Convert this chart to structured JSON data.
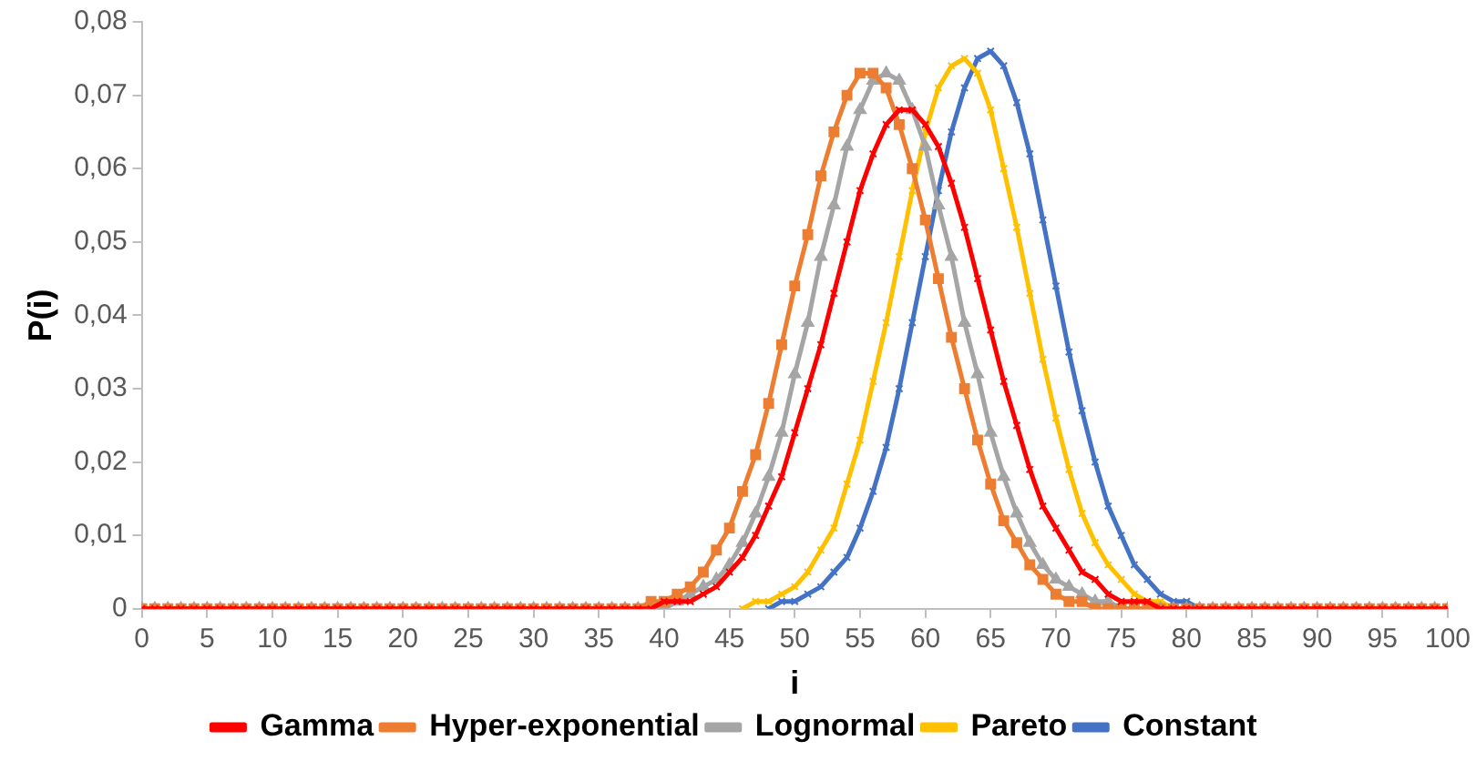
{
  "chart_data": {
    "type": "line",
    "xlabel": "i",
    "ylabel": "P(i)",
    "x": [
      0,
      1,
      2,
      3,
      4,
      5,
      6,
      7,
      8,
      9,
      10,
      11,
      12,
      13,
      14,
      15,
      16,
      17,
      18,
      19,
      20,
      21,
      22,
      23,
      24,
      25,
      26,
      27,
      28,
      29,
      30,
      31,
      32,
      33,
      34,
      35,
      36,
      37,
      38,
      39,
      40,
      41,
      42,
      43,
      44,
      45,
      46,
      47,
      48,
      49,
      50,
      51,
      52,
      53,
      54,
      55,
      56,
      57,
      58,
      59,
      60,
      61,
      62,
      63,
      64,
      65,
      66,
      67,
      68,
      69,
      70,
      71,
      72,
      73,
      74,
      75,
      76,
      77,
      78,
      79,
      80,
      81,
      82,
      83,
      84,
      85,
      86,
      87,
      88,
      89,
      90,
      91,
      92,
      93,
      94,
      95,
      96,
      97,
      98,
      99,
      100
    ],
    "series": [
      {
        "name": "Gamma",
        "color": "#ff0000",
        "marker": "cross",
        "values": [
          0,
          0,
          0,
          0,
          0,
          0,
          0,
          0,
          0,
          0,
          0,
          0,
          0,
          0,
          0,
          0,
          0,
          0,
          0,
          0,
          0,
          0,
          0,
          0,
          0,
          0,
          0,
          0,
          0,
          0,
          0,
          0,
          0,
          0,
          0,
          0,
          0,
          0,
          0,
          0,
          0.001,
          0.001,
          0.001,
          0.002,
          0.003,
          0.005,
          0.007,
          0.01,
          0.014,
          0.018,
          0.024,
          0.03,
          0.036,
          0.043,
          0.05,
          0.057,
          0.062,
          0.066,
          0.068,
          0.068,
          0.066,
          0.063,
          0.058,
          0.052,
          0.045,
          0.038,
          0.031,
          0.025,
          0.019,
          0.014,
          0.011,
          0.008,
          0.005,
          0.004,
          0.002,
          0.001,
          0.001,
          0.001,
          0,
          0,
          0,
          0,
          0,
          0,
          0,
          0,
          0,
          0,
          0,
          0,
          0,
          0,
          0,
          0,
          0,
          0,
          0,
          0,
          0,
          0,
          0
        ]
      },
      {
        "name": "Hyper-exponential",
        "color": "#ed7d31",
        "marker": "square",
        "values": [
          0,
          0,
          0,
          0,
          0,
          0,
          0,
          0,
          0,
          0,
          0,
          0,
          0,
          0,
          0,
          0,
          0,
          0,
          0,
          0,
          0,
          0,
          0,
          0,
          0,
          0,
          0,
          0,
          0,
          0,
          0,
          0,
          0,
          0,
          0,
          0,
          0,
          0,
          0,
          0.001,
          0.001,
          0.002,
          0.003,
          0.005,
          0.008,
          0.011,
          0.016,
          0.021,
          0.028,
          0.036,
          0.044,
          0.051,
          0.059,
          0.065,
          0.07,
          0.073,
          0.073,
          0.071,
          0.066,
          0.06,
          0.053,
          0.045,
          0.037,
          0.03,
          0.023,
          0.017,
          0.012,
          0.009,
          0.006,
          0.004,
          0.002,
          0.001,
          0.001,
          0,
          0,
          0,
          0,
          0,
          0,
          0,
          0,
          0,
          0,
          0,
          0,
          0,
          0,
          0,
          0,
          0,
          0,
          0,
          0,
          0,
          0,
          0,
          0,
          0,
          0,
          0,
          0
        ]
      },
      {
        "name": "Lognormal",
        "color": "#a5a5a5",
        "marker": "triangle",
        "values": [
          0,
          0,
          0,
          0,
          0,
          0,
          0,
          0,
          0,
          0,
          0,
          0,
          0,
          0,
          0,
          0,
          0,
          0,
          0,
          0,
          0,
          0,
          0,
          0,
          0,
          0,
          0,
          0,
          0,
          0,
          0,
          0,
          0,
          0,
          0,
          0,
          0,
          0,
          0,
          0,
          0,
          0.001,
          0.002,
          0.003,
          0.004,
          0.006,
          0.009,
          0.013,
          0.018,
          0.024,
          0.032,
          0.039,
          0.048,
          0.055,
          0.063,
          0.068,
          0.072,
          0.073,
          0.072,
          0.068,
          0.063,
          0.055,
          0.048,
          0.039,
          0.032,
          0.024,
          0.018,
          0.013,
          0.009,
          0.006,
          0.004,
          0.003,
          0.002,
          0.001,
          0.001,
          0,
          0,
          0,
          0,
          0,
          0,
          0,
          0,
          0,
          0,
          0,
          0,
          0,
          0,
          0,
          0,
          0,
          0,
          0,
          0,
          0,
          0,
          0,
          0,
          0,
          0
        ]
      },
      {
        "name": "Pareto",
        "color": "#ffc000",
        "marker": "cross",
        "values": [
          null,
          null,
          null,
          null,
          null,
          null,
          null,
          null,
          null,
          null,
          null,
          null,
          null,
          null,
          null,
          null,
          null,
          null,
          null,
          null,
          null,
          null,
          null,
          null,
          null,
          null,
          null,
          null,
          null,
          null,
          null,
          null,
          null,
          null,
          null,
          null,
          null,
          null,
          null,
          null,
          null,
          null,
          null,
          null,
          null,
          null,
          0,
          0.001,
          0.001,
          0.002,
          0.003,
          0.005,
          0.008,
          0.011,
          0.017,
          0.023,
          0.031,
          0.039,
          0.048,
          0.057,
          0.065,
          0.071,
          0.074,
          0.075,
          0.073,
          0.068,
          0.06,
          0.052,
          0.043,
          0.034,
          0.026,
          0.019,
          0.013,
          0.009,
          0.006,
          0.004,
          0.002,
          0.001,
          0.001,
          0,
          null,
          null,
          null,
          null,
          null,
          null,
          null,
          null,
          null,
          null,
          null,
          null,
          null,
          null,
          null,
          null,
          null,
          null,
          null,
          null,
          null
        ]
      },
      {
        "name": "Constant",
        "color": "#4472c4",
        "marker": "cross",
        "values": [
          null,
          null,
          null,
          null,
          null,
          null,
          null,
          null,
          null,
          null,
          null,
          null,
          null,
          null,
          null,
          null,
          null,
          null,
          null,
          null,
          null,
          null,
          null,
          null,
          null,
          null,
          null,
          null,
          null,
          null,
          null,
          null,
          null,
          null,
          null,
          null,
          null,
          null,
          null,
          null,
          null,
          null,
          null,
          null,
          null,
          null,
          null,
          null,
          0,
          0.001,
          0.001,
          0.002,
          0.003,
          0.005,
          0.007,
          0.011,
          0.016,
          0.022,
          0.03,
          0.039,
          0.048,
          0.057,
          0.065,
          0.071,
          0.075,
          0.076,
          0.074,
          0.069,
          0.062,
          0.053,
          0.044,
          0.035,
          0.027,
          0.02,
          0.014,
          0.01,
          0.006,
          0.004,
          0.002,
          0.001,
          0.001,
          0,
          null,
          null,
          null,
          null,
          null,
          null,
          null,
          null,
          null,
          null,
          null,
          null,
          null,
          null,
          null,
          null,
          null,
          null,
          null
        ]
      }
    ],
    "xlim": [
      0,
      100
    ],
    "xticks": [
      0,
      5,
      10,
      15,
      20,
      25,
      30,
      35,
      40,
      45,
      50,
      55,
      60,
      65,
      70,
      75,
      80,
      85,
      90,
      95,
      100
    ],
    "ylim": [
      0,
      0.08
    ],
    "yticks": [
      0,
      {
        "value": 0.01,
        "label": "0,01"
      },
      {
        "value": 0.02,
        "label": "0,02"
      },
      {
        "value": 0.03,
        "label": "0,03"
      },
      {
        "value": 0.04,
        "label": "0,04"
      },
      {
        "value": 0.05,
        "label": "0,05"
      },
      {
        "value": 0.06,
        "label": "0,06"
      },
      {
        "value": 0.07,
        "label": "0,07"
      },
      {
        "value": 0.08,
        "label": "0,08"
      }
    ],
    "grid": false,
    "legend": "bottom",
    "line_style": "solid"
  }
}
